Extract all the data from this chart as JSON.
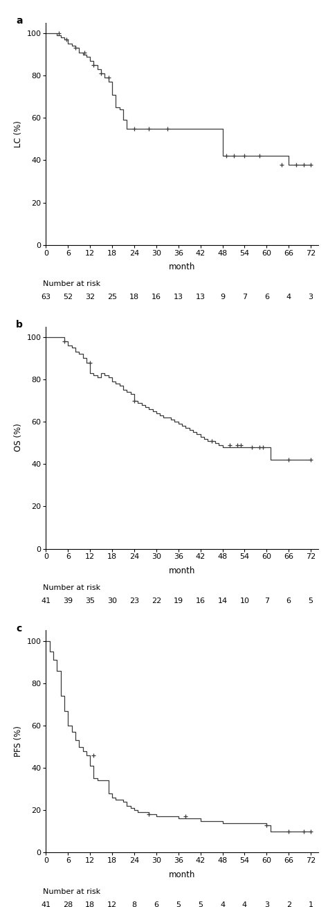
{
  "panel_a": {
    "label": "a",
    "ylabel": "LC (%)",
    "ylim": [
      0,
      105
    ],
    "yticks": [
      0,
      20,
      40,
      60,
      80,
      100
    ],
    "km_x": [
      0,
      3,
      4,
      5,
      6,
      7,
      8,
      9,
      10,
      11,
      12,
      13,
      14,
      15,
      16,
      17,
      18,
      19,
      20,
      21,
      22,
      48,
      66,
      72
    ],
    "km_y": [
      100,
      99,
      98,
      97,
      95,
      94,
      93,
      91,
      90,
      89,
      87,
      85,
      83,
      81,
      79,
      77,
      71,
      65,
      64,
      59,
      55,
      42,
      38,
      38
    ],
    "censors_x": [
      3.5,
      5.5,
      8,
      10.5,
      13,
      15,
      17,
      24,
      28,
      33,
      49,
      51,
      54,
      58,
      64,
      68,
      70,
      72
    ],
    "censors_y": [
      100,
      97,
      93,
      91,
      85,
      81,
      79,
      55,
      55,
      55,
      42,
      42,
      42,
      42,
      38,
      38,
      38,
      38
    ],
    "number_at_risk": [
      63,
      52,
      32,
      25,
      18,
      16,
      13,
      13,
      9,
      7,
      6,
      4,
      3
    ],
    "xticks": [
      0,
      6,
      12,
      18,
      24,
      30,
      36,
      42,
      48,
      54,
      60,
      66,
      72
    ]
  },
  "panel_b": {
    "label": "b",
    "ylabel": "OS (%)",
    "ylim": [
      0,
      105
    ],
    "yticks": [
      0,
      20,
      40,
      60,
      80,
      100
    ],
    "km_x": [
      0,
      5,
      6,
      7,
      8,
      9,
      10,
      11,
      12,
      13,
      14,
      15,
      16,
      17,
      18,
      19,
      20,
      21,
      22,
      23,
      24,
      25,
      26,
      27,
      28,
      29,
      30,
      31,
      32,
      33,
      34,
      35,
      36,
      37,
      38,
      39,
      40,
      41,
      42,
      43,
      44,
      46,
      47,
      48,
      54,
      61,
      66,
      72
    ],
    "km_y": [
      100,
      98,
      96,
      95,
      93,
      92,
      90,
      88,
      83,
      82,
      81,
      83,
      82,
      81,
      79,
      78,
      77,
      75,
      74,
      73,
      70,
      69,
      68,
      67,
      66,
      65,
      64,
      63,
      62,
      62,
      61,
      60,
      59,
      58,
      57,
      56,
      55,
      54,
      53,
      52,
      51,
      50,
      49,
      48,
      48,
      42,
      42,
      42
    ],
    "censors_x": [
      5,
      12,
      24,
      45,
      50,
      52,
      53,
      56,
      58,
      59,
      66,
      72
    ],
    "censors_y": [
      98,
      88,
      70,
      51,
      49,
      49,
      49,
      48,
      48,
      48,
      42,
      42
    ],
    "number_at_risk": [
      41,
      39,
      35,
      30,
      23,
      22,
      19,
      16,
      14,
      10,
      7,
      6,
      5
    ],
    "xticks": [
      0,
      6,
      12,
      18,
      24,
      30,
      36,
      42,
      48,
      54,
      60,
      66,
      72
    ]
  },
  "panel_c": {
    "label": "c",
    "ylabel": "PFS (%)",
    "ylim": [
      0,
      105
    ],
    "yticks": [
      0,
      20,
      40,
      60,
      80,
      100
    ],
    "km_x": [
      0,
      1,
      2,
      3,
      4,
      5,
      6,
      7,
      8,
      9,
      10,
      11,
      12,
      13,
      14,
      15,
      17,
      18,
      19,
      20,
      21,
      22,
      23,
      24,
      25,
      26,
      28,
      30,
      32,
      36,
      42,
      48,
      56,
      60,
      61,
      66,
      68,
      72
    ],
    "km_y": [
      100,
      95,
      91,
      86,
      74,
      67,
      60,
      57,
      53,
      50,
      48,
      46,
      41,
      35,
      34,
      34,
      28,
      26,
      25,
      25,
      24,
      22,
      21,
      20,
      19,
      19,
      18,
      17,
      17,
      16,
      15,
      14,
      14,
      13,
      10,
      10,
      10,
      10
    ],
    "censors_x": [
      13,
      28,
      38,
      60,
      66,
      70,
      72
    ],
    "censors_y": [
      46,
      18,
      17,
      13,
      10,
      10,
      10
    ],
    "number_at_risk": [
      41,
      28,
      18,
      12,
      8,
      6,
      5,
      5,
      4,
      4,
      3,
      2,
      1
    ],
    "xticks": [
      0,
      6,
      12,
      18,
      24,
      30,
      36,
      42,
      48,
      54,
      60,
      66,
      72
    ]
  },
  "line_color": "#3a3a3a",
  "bg_color": "#ffffff",
  "font_size": 8.5,
  "label_fontsize": 10,
  "tick_fontsize": 8
}
